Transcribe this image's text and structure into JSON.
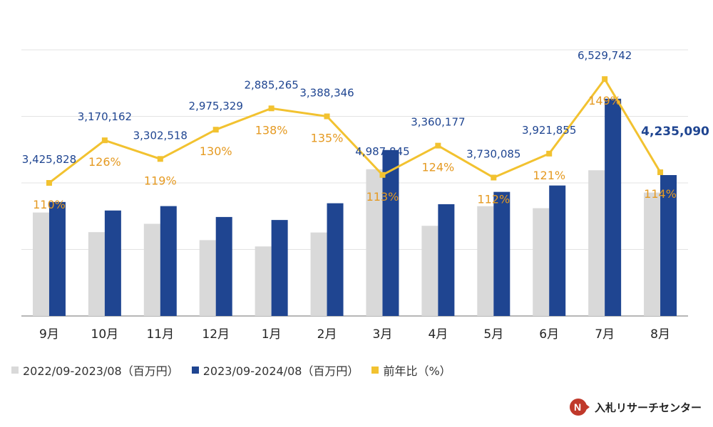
{
  "chart_data": {
    "type": "bar",
    "categories": [
      "9月",
      "10月",
      "11月",
      "12月",
      "1月",
      "2月",
      "3月",
      "4月",
      "5月",
      "6月",
      "7月",
      "8月"
    ],
    "series": [
      {
        "name": "2022/09-2023/08（百万円）",
        "kind": "bar",
        "color": "#d9d9d9",
        "values": [
          3110000,
          2520000,
          2770000,
          2280000,
          2090000,
          2510000,
          4410000,
          2710000,
          3300000,
          3240000,
          4380000,
          3710000
        ]
      },
      {
        "name": "2023/09-2024/08（百万円）",
        "kind": "bar",
        "color": "#1f4591",
        "values": [
          3425828,
          3170162,
          3302518,
          2975329,
          2885265,
          3388346,
          4987845,
          3360177,
          3730085,
          3921855,
          6529742,
          4235090
        ]
      },
      {
        "name": "前年比（%）",
        "kind": "line",
        "color": "#f2c230",
        "values": [
          110,
          126,
          119,
          130,
          138,
          135,
          113,
          124,
          112,
          121,
          149,
          114
        ]
      }
    ],
    "value_labels": [
      "3,425,828",
      "3,170,162",
      "3,302,518",
      "2,975,329",
      "2,885,265",
      "3,388,346",
      "4,987,845",
      "3,360,177",
      "3,730,085",
      "3,921,855",
      "6,529,742",
      "4,235,090"
    ],
    "pct_labels": [
      "110%",
      "126%",
      "119%",
      "130%",
      "138%",
      "135%",
      "113%",
      "124%",
      "112%",
      "121%",
      "149%",
      "114%"
    ],
    "ylim": [
      0,
      8000000
    ],
    "ratio_ylim": [
      60,
      160
    ],
    "grid": true,
    "legend_position": "bottom-left"
  },
  "brand": {
    "logo_icon": "N",
    "name": "入札リサーチセンター",
    "icon_color": "#c0392b"
  }
}
